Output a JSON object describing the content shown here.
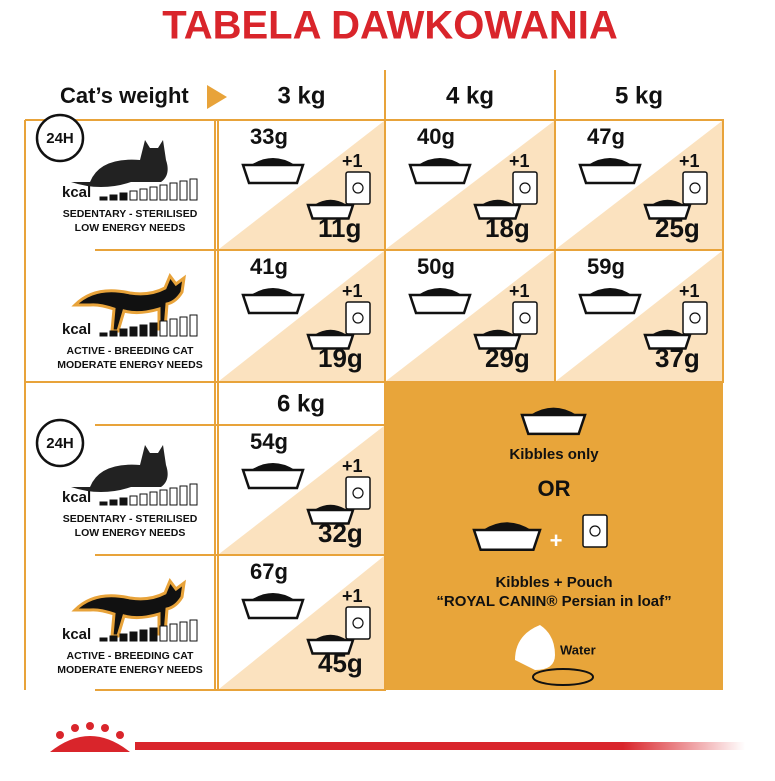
{
  "title": "TABELA DAWKOWANIA",
  "weight_label": "Cat’s weight",
  "weights": [
    "3 kg",
    "4 kg",
    "5 kg",
    "6 kg"
  ],
  "profiles": [
    {
      "clock": "24H",
      "kcal": "kcal",
      "line1": "SEDENTARY - STERILISED",
      "line2": "LOW ENERGY NEEDS"
    },
    {
      "kcal": "kcal",
      "line1": "ACTIVE - BREEDING CAT",
      "line2": "MODERATE ENERGY NEEDS"
    },
    {
      "clock": "24H",
      "kcal": "kcal",
      "line1": "SEDENTARY - STERILISED",
      "line2": "LOW ENERGY NEEDS"
    },
    {
      "kcal": "kcal",
      "line1": "ACTIVE - BREEDING CAT",
      "line2": "MODERATE ENERGY NEEDS"
    }
  ],
  "rows": [
    [
      {
        "kibbles": "33g",
        "extra": "+1",
        "mixed": "11g"
      },
      {
        "kibbles": "40g",
        "extra": "+1",
        "mixed": "18g"
      },
      {
        "kibbles": "47g",
        "extra": "+1",
        "mixed": "25g"
      }
    ],
    [
      {
        "kibbles": "41g",
        "extra": "+1",
        "mixed": "19g"
      },
      {
        "kibbles": "50g",
        "extra": "+1",
        "mixed": "29g"
      },
      {
        "kibbles": "59g",
        "extra": "+1",
        "mixed": "37g"
      }
    ],
    [
      {
        "kibbles": "54g",
        "extra": "+1",
        "mixed": "32g"
      }
    ],
    [
      {
        "kibbles": "67g",
        "extra": "+1",
        "mixed": "45g"
      }
    ]
  ],
  "legend": {
    "kibbles_only": "Kibbles only",
    "or": "OR",
    "plus": "+",
    "kibbles_pouch": "Kibbles + Pouch",
    "product": "“ROYAL CANIN® Persian in loaf”",
    "water": "Water"
  }
}
